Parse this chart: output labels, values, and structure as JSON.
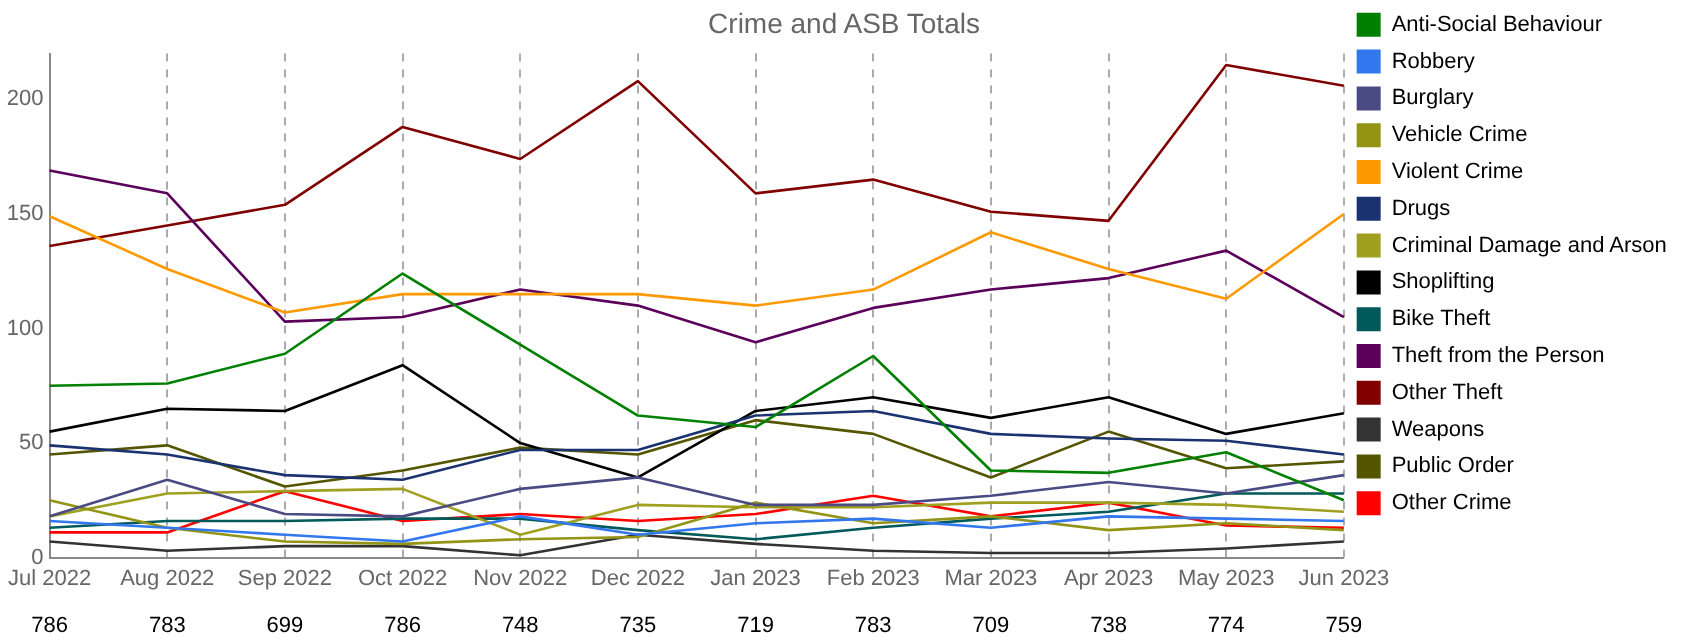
{
  "chart_data": {
    "type": "line",
    "title": "Crime and ASB Totals",
    "categories": [
      "Jul 2022",
      "Aug 2022",
      "Sep 2022",
      "Oct 2022",
      "Nov 2022",
      "Dec 2022",
      "Jan 2023",
      "Feb 2023",
      "Mar 2023",
      "Apr 2023",
      "May 2023",
      "Jun 2023"
    ],
    "series": [
      {
        "name": "Anti-Social Behaviour",
        "color": "#008000",
        "values": [
          75,
          76,
          89,
          124,
          93,
          62,
          57,
          88,
          38,
          37,
          46,
          25
        ]
      },
      {
        "name": "Robbery",
        "color": "#3377ee",
        "values": [
          16,
          13,
          10,
          7,
          18,
          10,
          15,
          17,
          13,
          18,
          17,
          16
        ]
      },
      {
        "name": "Burglary",
        "color": "#4b4b84",
        "values": [
          18,
          34,
          19,
          18,
          30,
          35,
          23,
          23,
          27,
          33,
          28,
          36
        ]
      },
      {
        "name": "Vehicle Crime",
        "color": "#939314",
        "values": [
          25,
          13,
          7,
          6,
          8,
          9,
          24,
          15,
          18,
          12,
          15,
          12
        ]
      },
      {
        "name": "Violent Crime",
        "color": "#ff9900",
        "values": [
          149,
          126,
          107,
          115,
          115,
          115,
          110,
          117,
          142,
          126,
          113,
          150
        ]
      },
      {
        "name": "Drugs",
        "color": "#1a3370",
        "values": [
          49,
          45,
          36,
          34,
          47,
          47,
          62,
          64,
          54,
          52,
          51,
          45
        ]
      },
      {
        "name": "Criminal Damage and Arson",
        "color": "#a0a020",
        "values": [
          18,
          28,
          29,
          30,
          10,
          23,
          22,
          22,
          24,
          24,
          23,
          20
        ]
      },
      {
        "name": "Shoplifting",
        "color": "#000000",
        "values": [
          55,
          65,
          64,
          84,
          50,
          35,
          64,
          70,
          61,
          70,
          54,
          63
        ]
      },
      {
        "name": "Bike Theft",
        "color": "#005a5a",
        "values": [
          13,
          16,
          16,
          17,
          17,
          12,
          8,
          13,
          17,
          20,
          28,
          28
        ]
      },
      {
        "name": "Theft from the Person",
        "color": "#5a005a",
        "values": [
          169,
          159,
          103,
          105,
          117,
          110,
          94,
          109,
          117,
          122,
          134,
          105
        ]
      },
      {
        "name": "Other Theft",
        "color": "#800000",
        "values": [
          136,
          145,
          154,
          188,
          174,
          208,
          159,
          165,
          151,
          147,
          215,
          206
        ]
      },
      {
        "name": "Weapons",
        "color": "#333333",
        "values": [
          7,
          3,
          5,
          5,
          1,
          10,
          6,
          3,
          2,
          2,
          4,
          7
        ]
      },
      {
        "name": "Public Order",
        "color": "#555500",
        "values": [
          45,
          49,
          31,
          38,
          48,
          45,
          60,
          54,
          35,
          55,
          39,
          42
        ]
      },
      {
        "name": "Other Crime",
        "color": "#ff0000",
        "values": [
          11,
          11,
          29,
          16,
          19,
          16,
          19,
          27,
          18,
          24,
          14,
          13
        ]
      }
    ],
    "ylim": [
      0,
      220
    ],
    "yticks": [
      0,
      50,
      100,
      150,
      200
    ],
    "grid": "x",
    "legend": "right",
    "marker": "none",
    "line_style": "solid",
    "totals": [
      "786",
      "783",
      "699",
      "786",
      "748",
      "735",
      "719",
      "783",
      "709",
      "738",
      "774",
      "759"
    ]
  }
}
